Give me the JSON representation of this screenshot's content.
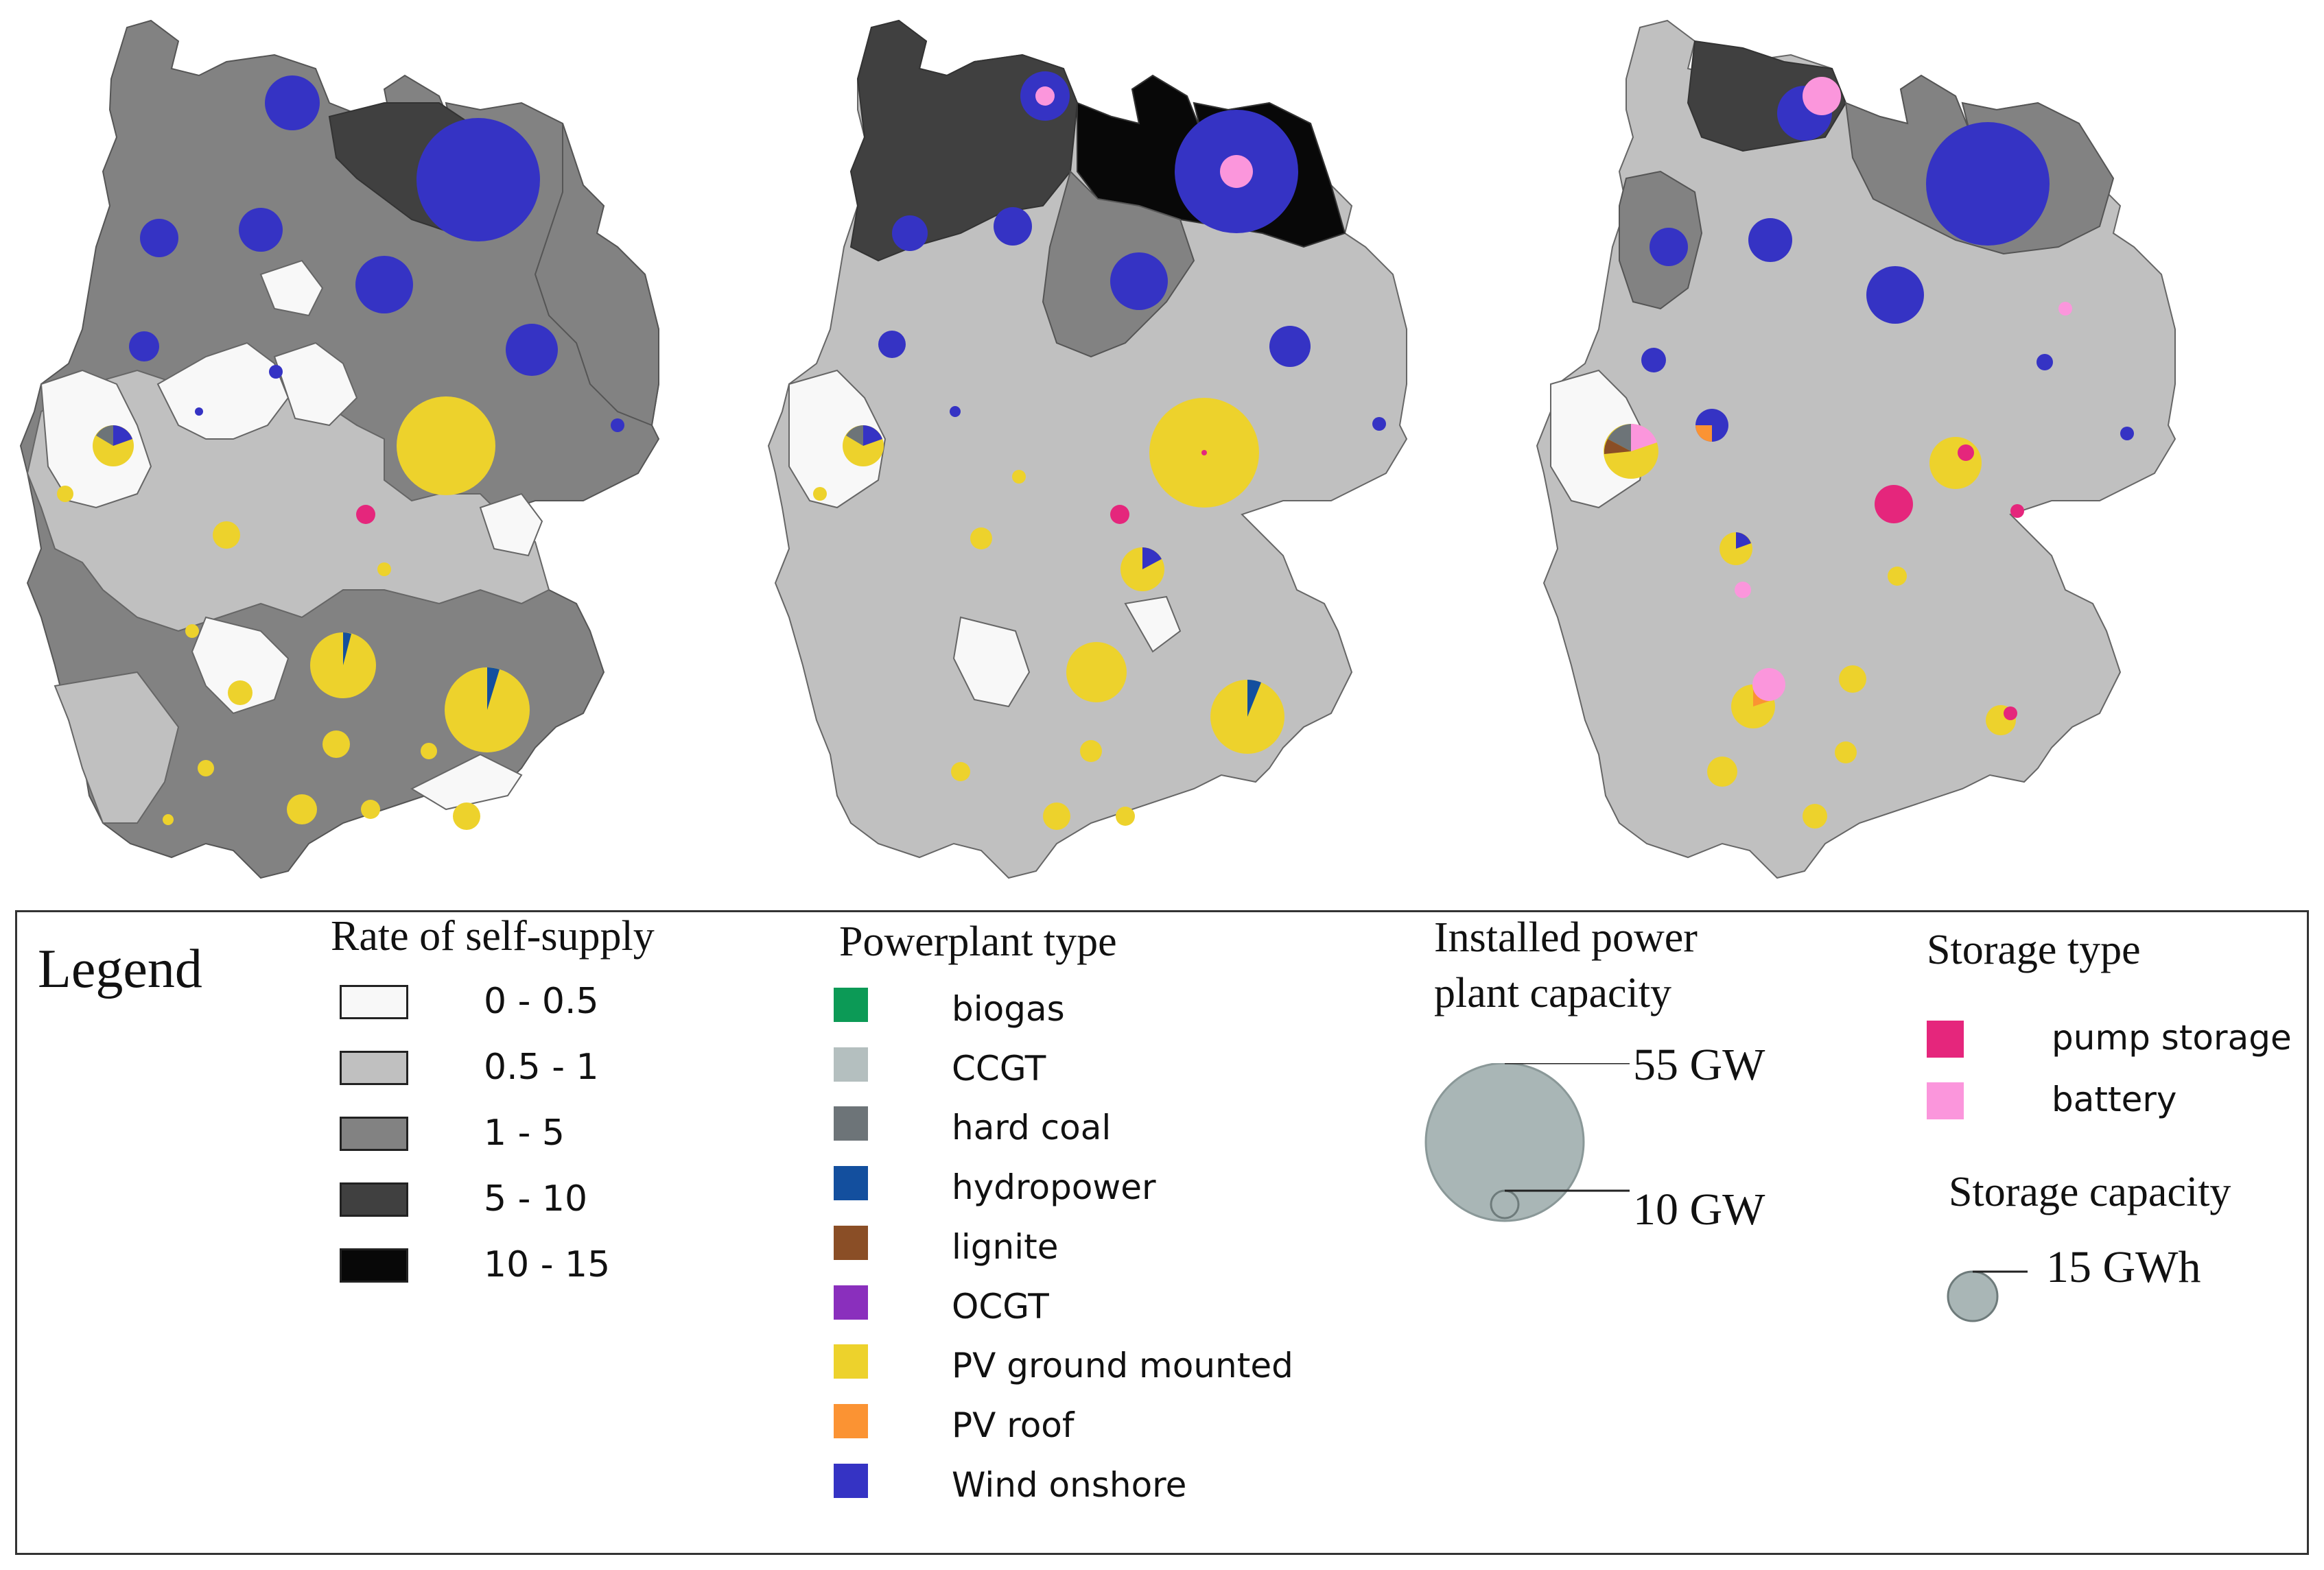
{
  "legend": {
    "title": "Legend",
    "self_supply": {
      "heading": "Rate of self-supply",
      "classes": [
        {
          "label": "0 - 0.5",
          "color": "#f8f8f8"
        },
        {
          "label": "0.5 - 1",
          "color": "#c0c0c0"
        },
        {
          "label": "1 - 5",
          "color": "#828282"
        },
        {
          "label": "5 - 10",
          "color": "#404040"
        },
        {
          "label": "10 - 15",
          "color": "#080808"
        }
      ]
    },
    "plant_type": {
      "heading": "Powerplant type",
      "items": [
        {
          "label": "biogas",
          "color": "#0c9a56"
        },
        {
          "label": "CCGT",
          "color": "#b4bfbf"
        },
        {
          "label": "hard coal",
          "color": "#6d7478"
        },
        {
          "label": "hydropower",
          "color": "#134f9e"
        },
        {
          "label": "lignite",
          "color": "#8a4e26"
        },
        {
          "label": "OCGT",
          "color": "#8a2fbd"
        },
        {
          "label": "PV ground mounted",
          "color": "#edd22c"
        },
        {
          "label": "PV roof",
          "color": "#fb9333"
        },
        {
          "label": "Wind onshore",
          "color": "#3533c4"
        }
      ]
    },
    "capacity": {
      "heading_line1": "Installed power",
      "heading_line2": "plant capacity",
      "large_label": "55 GW",
      "small_label": "10 GW",
      "circle_color": "#a9b6b6"
    },
    "storage_type": {
      "heading": "Storage type",
      "items": [
        {
          "label": "pump storage",
          "color": "#e5267c"
        },
        {
          "label": "battery",
          "color": "#fb96dc"
        }
      ]
    },
    "storage_capacity": {
      "heading": "Storage capacity",
      "label": "15 GWh",
      "circle_color": "#a9b6b6"
    }
  }
}
